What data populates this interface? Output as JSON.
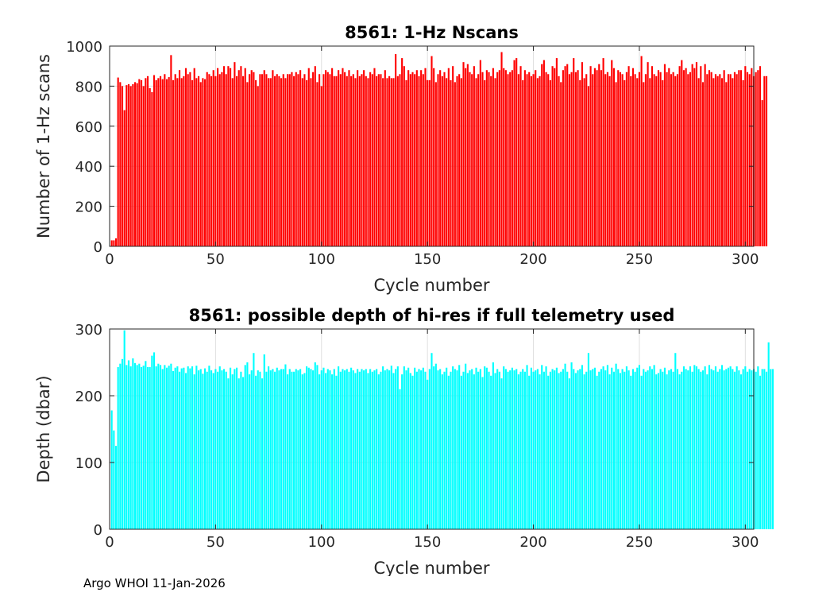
{
  "footer": "Argo WHOI 11-Jan-2026",
  "chart_data": [
    {
      "type": "bar",
      "title": "8561: 1-Hz Nscans",
      "xlabel": "Cycle number",
      "ylabel": "Number of 1-Hz scans",
      "xlim": [
        0,
        304
      ],
      "ylim": [
        0,
        1000
      ],
      "xticks": [
        0,
        50,
        100,
        150,
        200,
        250,
        300
      ],
      "yticks": [
        0,
        200,
        400,
        600,
        800,
        1000
      ],
      "color": "#ff0000",
      "grid": true,
      "x_start": 1,
      "values": [
        30,
        30,
        40,
        843,
        820,
        800,
        680,
        805,
        810,
        800,
        810,
        820,
        815,
        835,
        830,
        800,
        840,
        850,
        790,
        770,
        855,
        830,
        840,
        850,
        835,
        860,
        835,
        845,
        955,
        830,
        860,
        840,
        880,
        840,
        850,
        890,
        860,
        870,
        830,
        890,
        840,
        850,
        820,
        840,
        835,
        870,
        860,
        850,
        880,
        850,
        890,
        860,
        870,
        900,
        860,
        900,
        890,
        840,
        920,
        850,
        880,
        900,
        850,
        890,
        820,
        860,
        880,
        870,
        830,
        800,
        860,
        860,
        880,
        860,
        840,
        840,
        880,
        850,
        860,
        850,
        840,
        860,
        840,
        860,
        860,
        870,
        850,
        870,
        860,
        880,
        840,
        860,
        830,
        890,
        840,
        870,
        900,
        820,
        860,
        800,
        860,
        880,
        870,
        860,
        890,
        850,
        850,
        880,
        860,
        890,
        870,
        850,
        880,
        850,
        860,
        840,
        880,
        850,
        860,
        880,
        850,
        840,
        870,
        860,
        890,
        850,
        860,
        860,
        840,
        880,
        840,
        850,
        840,
        840,
        960,
        850,
        860,
        940,
        900,
        830,
        880,
        860,
        870,
        860,
        880,
        850,
        880,
        860,
        890,
        830,
        830,
        950,
        890,
        820,
        860,
        880,
        850,
        870,
        840,
        890,
        830,
        900,
        820,
        850,
        860,
        840,
        920,
        890,
        910,
        870,
        860,
        900,
        840,
        860,
        930,
        870,
        830,
        880,
        870,
        850,
        890,
        840,
        870,
        880,
        970,
        890,
        880,
        860,
        870,
        880,
        930,
        940,
        860,
        900,
        830,
        880,
        860,
        870,
        850,
        860,
        880,
        840,
        850,
        910,
        930,
        870,
        860,
        830,
        900,
        890,
        940,
        850,
        820,
        880,
        900,
        910,
        860,
        870,
        940,
        870,
        880,
        830,
        920,
        840,
        860,
        800,
        900,
        860,
        890,
        880,
        910,
        880,
        940,
        860,
        870,
        850,
        930,
        890,
        820,
        880,
        870,
        860,
        830,
        870,
        900,
        850,
        890,
        860,
        840,
        870,
        950,
        820,
        860,
        920,
        840,
        900,
        860,
        850,
        880,
        870,
        830,
        910,
        870,
        890,
        860,
        870,
        850,
        860,
        900,
        930,
        880,
        890,
        860,
        870,
        910,
        890,
        920,
        840,
        900,
        820,
        910,
        860,
        880,
        870,
        840,
        860,
        850,
        860,
        840,
        880,
        820,
        860,
        860,
        840,
        870,
        860,
        880,
        880,
        830,
        900,
        870,
        860,
        890,
        850,
        870,
        880,
        900,
        730,
        850,
        850
      ]
    },
    {
      "type": "bar",
      "title": "8561: possible depth of hi-res if full telemetry used",
      "xlabel": "Cycle number",
      "ylabel": "Depth (dbar)",
      "xlim": [
        0,
        304
      ],
      "ylim": [
        0,
        300
      ],
      "xticks": [
        0,
        50,
        100,
        150,
        200,
        250,
        300
      ],
      "yticks": [
        0,
        100,
        200,
        300
      ],
      "color": "#00ffff",
      "grid": true,
      "x_start": 1,
      "values": [
        178,
        148,
        125,
        243,
        248,
        255,
        298,
        246,
        253,
        244,
        256,
        249,
        246,
        248,
        243,
        245,
        252,
        243,
        243,
        260,
        265,
        244,
        248,
        246,
        240,
        246,
        242,
        245,
        248,
        237,
        242,
        244,
        236,
        241,
        242,
        234,
        244,
        241,
        244,
        232,
        245,
        238,
        240,
        233,
        241,
        236,
        245,
        238,
        234,
        240,
        236,
        244,
        238,
        240,
        236,
        226,
        242,
        232,
        240,
        242,
        226,
        236,
        228,
        246,
        250,
        232,
        238,
        264,
        230,
        238,
        236,
        226,
        262,
        236,
        244,
        238,
        240,
        236,
        242,
        238,
        240,
        240,
        247,
        232,
        240,
        236,
        236,
        240,
        238,
        240,
        232,
        234,
        244,
        242,
        240,
        238,
        250,
        246,
        232,
        238,
        242,
        234,
        240,
        238,
        232,
        240,
        230,
        244,
        236,
        240,
        238,
        240,
        236,
        242,
        238,
        234,
        240,
        236,
        240,
        238,
        240,
        234,
        240,
        236,
        238,
        240,
        232,
        236,
        244,
        238,
        240,
        238,
        245,
        234,
        240,
        244,
        210,
        232,
        244,
        238,
        242,
        234,
        230,
        242,
        236,
        240,
        238,
        242,
        236,
        224,
        240,
        264,
        244,
        248,
        238,
        240,
        232,
        236,
        242,
        230,
        236,
        244,
        240,
        238,
        246,
        230,
        236,
        248,
        234,
        238,
        240,
        232,
        242,
        236,
        240,
        228,
        244,
        242,
        236,
        230,
        250,
        234,
        240,
        236,
        226,
        244,
        240,
        236,
        238,
        242,
        238,
        240,
        232,
        236,
        240,
        236,
        246,
        230,
        242,
        236,
        238,
        240,
        232,
        246,
        236,
        244,
        230,
        236,
        240,
        238,
        242,
        234,
        236,
        240,
        248,
        236,
        226,
        250,
        240,
        234,
        238,
        240,
        246,
        232,
        236,
        264,
        238,
        240,
        242,
        230,
        236,
        240,
        244,
        238,
        246,
        232,
        242,
        236,
        248,
        240,
        234,
        240,
        236,
        244,
        238,
        230,
        240,
        236,
        242,
        246,
        230,
        240,
        236,
        238,
        244,
        240,
        246,
        232,
        234,
        240,
        236,
        242,
        232,
        238,
        240,
        236,
        264,
        240,
        232,
        236,
        244,
        240,
        238,
        244,
        236,
        246,
        244,
        240,
        236,
        238,
        244,
        232,
        246,
        240,
        238,
        244,
        236,
        240,
        246,
        238,
        240,
        242,
        244,
        240,
        236,
        244,
        238,
        232,
        240,
        244,
        236,
        240,
        238,
        240,
        236,
        244,
        230,
        240,
        240,
        236,
        280,
        240,
        240
      ]
    }
  ]
}
